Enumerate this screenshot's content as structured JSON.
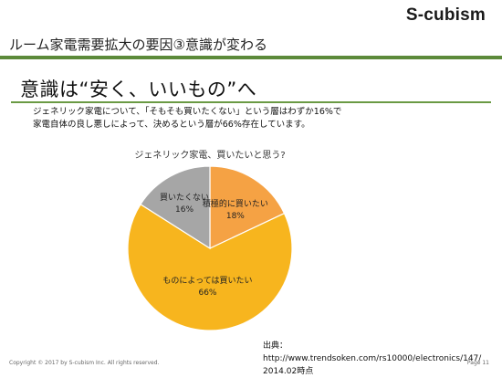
{
  "brand": "S-cubism",
  "header_title": "ルーム家電需要拡大の要因③意識が変わる",
  "heading": "意識は“安く、いいもの”へ",
  "description": {
    "line1": "ジェネリック家電について、「そもそも買いたくない」という層はわずか16%で",
    "line2": "家電自体の良し悪しによって、決めるという層が66%存在しています。"
  },
  "chart_data": {
    "type": "pie",
    "title": "ジェネリック家電、買いたいと思う?",
    "slices": [
      {
        "label": "積極的に買いたい",
        "value": 18,
        "display": "18%",
        "color": "#f5a244"
      },
      {
        "label": "ものによっては買いたい",
        "value": 66,
        "display": "66%",
        "color": "#f7b51e"
      },
      {
        "label": "買いたくない",
        "value": 16,
        "display": "16%",
        "color": "#a6a6a6"
      }
    ]
  },
  "source": {
    "line1": "出典：http://www.trendsoken.com/rs10000/electronics/147/",
    "line2": "2014.02時点"
  },
  "footer": {
    "copyright": "Copyright © 2017 by S-cubism Inc. All rights reserved.",
    "page": "Page 11"
  }
}
